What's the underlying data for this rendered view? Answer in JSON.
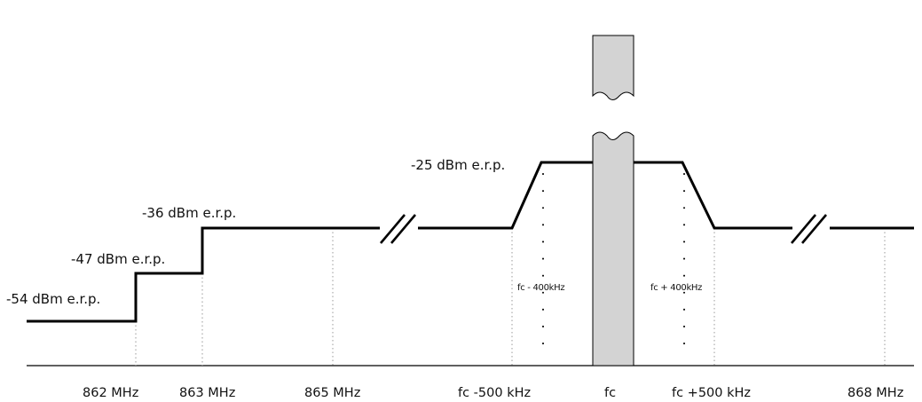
{
  "levels": {
    "l54": "-54 dBm e.r.p.",
    "l47": "-47 dBm e.r.p.",
    "l36": "-36 dBm e.r.p.",
    "l25": "-25 dBm e.r.p."
  },
  "ticks": {
    "t862": "862 MHz",
    "t863": "863 MHz",
    "t865": "865 MHz",
    "tfcm500": "fc -500 kHz",
    "tfc": "fc",
    "tfcp500": "fc +500 kHz",
    "t868": "868 MHz"
  },
  "annotations": {
    "fc_minus_400": "fc - 400kHz",
    "fc_plus_400": "fc + 400kHz"
  },
  "colors": {
    "mask_line": "#000000",
    "carrier_fill": "#d3d3d3",
    "guide_line": "#999999"
  }
}
